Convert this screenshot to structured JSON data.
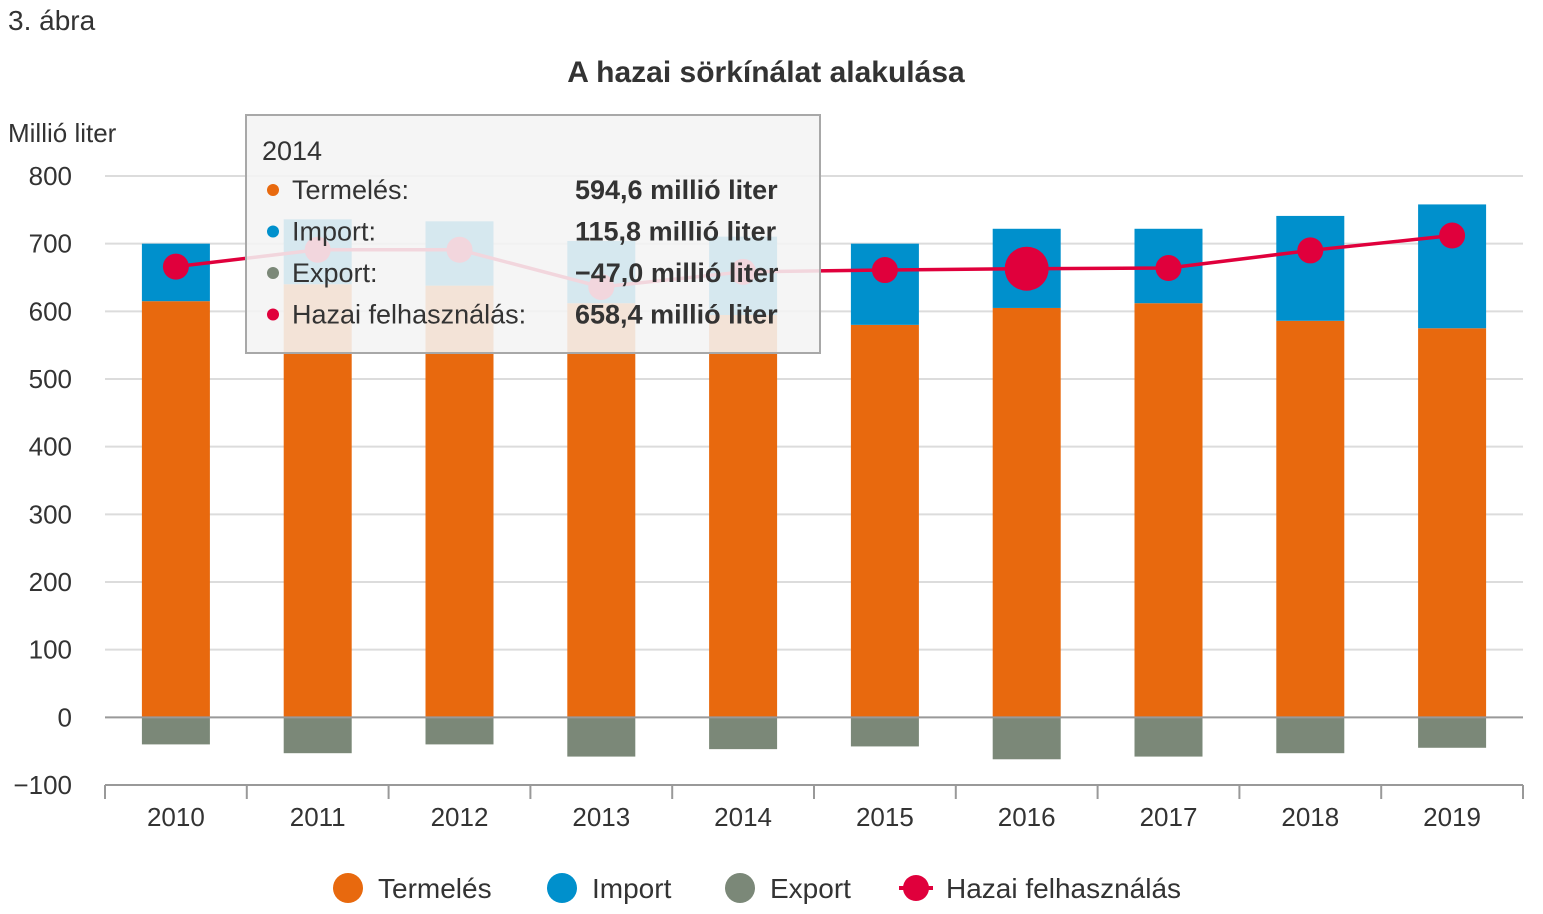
{
  "figure_label": "3. ábra",
  "colors": {
    "termeles": "#E8690E",
    "import": "#0090CC",
    "export": "#7B8878",
    "hazai": "#E0003C",
    "grid": "#DCDCDC",
    "axis": "#999999"
  },
  "chart_data": {
    "type": "bar",
    "title": "A hazai sörkínálat alakulása",
    "ylabel": "Millió liter",
    "xlabel": "",
    "ylim": [
      -100,
      800
    ],
    "yticks": [
      -100,
      0,
      100,
      200,
      300,
      400,
      500,
      600,
      700,
      800
    ],
    "ytick_labels": [
      "−100",
      "0",
      "100",
      "200",
      "300",
      "400",
      "500",
      "600",
      "700",
      "800"
    ],
    "categories": [
      "2010",
      "2011",
      "2012",
      "2013",
      "2014",
      "2015",
      "2016",
      "2017",
      "2018",
      "2019"
    ],
    "grid": true,
    "legend_position": "bottom",
    "series": [
      {
        "key": "termeles",
        "name": "Termelés",
        "kind": "stacked-bar",
        "values": [
          615,
          640,
          638,
          612,
          594.6,
          580,
          605,
          612,
          586,
          575
        ]
      },
      {
        "key": "import",
        "name": "Import",
        "kind": "stacked-bar",
        "values": [
          85,
          96,
          95,
          92,
          115.8,
          120,
          117,
          110,
          155,
          183
        ]
      },
      {
        "key": "export",
        "name": "Export",
        "kind": "stacked-bar",
        "values": [
          -40,
          -53,
          -40,
          -58,
          -47.0,
          -43,
          -62,
          -58,
          -53,
          -45
        ]
      },
      {
        "key": "hazai",
        "name": "Hazai felhasználás",
        "kind": "line",
        "values": [
          666,
          691,
          691,
          636,
          658.4,
          661,
          663,
          664,
          690,
          712
        ]
      }
    ],
    "highlight_index": 6,
    "tooltip": {
      "year": "2014",
      "rows": [
        {
          "key": "termeles",
          "label": "Termelés:",
          "value": "594,6 millió liter"
        },
        {
          "key": "import",
          "label": "Import:",
          "value": "115,8 millió liter"
        },
        {
          "key": "export",
          "label": "Export:",
          "value": "−47,0 millió liter"
        },
        {
          "key": "hazai",
          "label": "Hazai felhasználás:",
          "value": "658,4 millió liter"
        }
      ]
    }
  }
}
